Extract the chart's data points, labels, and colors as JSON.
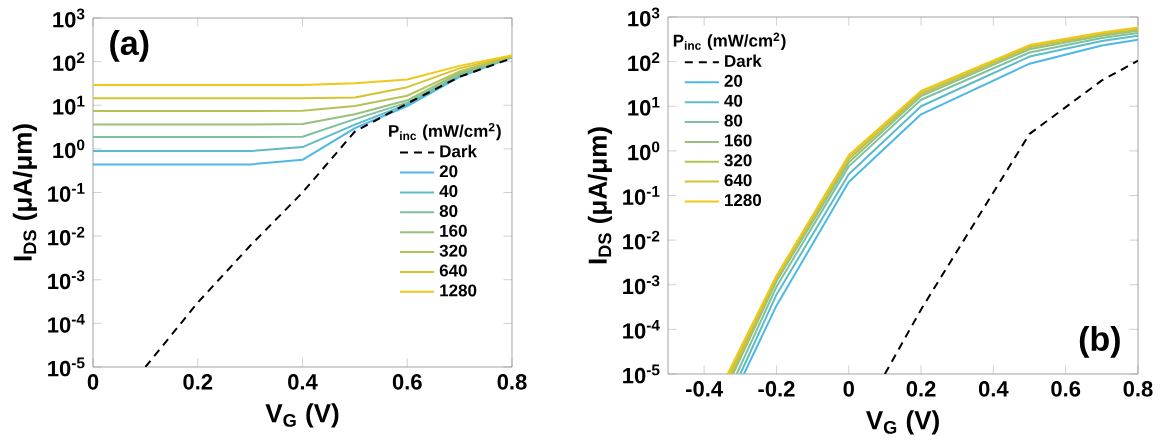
{
  "chart_data": [
    {
      "type": "line",
      "xlabel": "V$_{G}$ (V)",
      "ylabel": "I$_{DS}$ (μA/μm)",
      "legend_title": "P$_{inc}$ (mW/cm$^{2}$)",
      "annotations": [
        "(a)"
      ],
      "log": "y",
      "legend": "bottom right",
      "xlim": [
        0,
        0.8
      ],
      "xticks": [
        0,
        0.2,
        0.4,
        0.6,
        0.8
      ],
      "ylim": [
        1e-05,
        1000
      ],
      "yticks": [
        {
          "value": 1e-05,
          "label": "10$^{-5}$"
        },
        {
          "value": 0.0001,
          "label": "10$^{-4}$"
        },
        {
          "value": 0.001,
          "label": "10$^{-3}$"
        },
        {
          "value": 0.01,
          "label": "10$^{-2}$"
        },
        {
          "value": 0.1,
          "label": "10$^{-1}$"
        },
        {
          "value": 1,
          "label": "10$^{0}$"
        },
        {
          "value": 10,
          "label": "10$^{1}$"
        },
        {
          "value": 100,
          "label": "10$^{2}$"
        },
        {
          "value": 1000,
          "label": "10$^{3}$"
        }
      ],
      "series": [
        {
          "name": "Dark",
          "color": "#000000",
          "line_style": "dashed",
          "x": [
            0.1,
            0.2,
            0.3,
            0.4,
            0.5,
            0.6,
            0.7,
            0.8
          ],
          "values": [
            1e-05,
            0.0003,
            0.006,
            0.1,
            2.5,
            11,
            45,
            120
          ]
        },
        {
          "name": "20",
          "color": "#4db8e8",
          "x": [
            0,
            0.1,
            0.2,
            0.3,
            0.4,
            0.5,
            0.6,
            0.7,
            0.8
          ],
          "values": [
            0.44,
            0.44,
            0.44,
            0.44,
            0.56,
            3.0,
            9.6,
            45,
            125
          ]
        },
        {
          "name": "40",
          "color": "#5bbcc8",
          "x": [
            0,
            0.1,
            0.2,
            0.3,
            0.4,
            0.5,
            0.6,
            0.7,
            0.8
          ],
          "values": [
            0.89,
            0.89,
            0.89,
            0.89,
            1.1,
            3.6,
            10.5,
            48,
            127
          ]
        },
        {
          "name": "80",
          "color": "#7fc0a0",
          "x": [
            0,
            0.1,
            0.2,
            0.3,
            0.4,
            0.5,
            0.6,
            0.7,
            0.8
          ],
          "values": [
            1.86,
            1.86,
            1.86,
            1.86,
            1.9,
            4.8,
            11.5,
            50,
            128
          ]
        },
        {
          "name": "160",
          "color": "#99c07a",
          "x": [
            0,
            0.1,
            0.2,
            0.3,
            0.4,
            0.5,
            0.6,
            0.7,
            0.8
          ],
          "values": [
            3.6,
            3.6,
            3.6,
            3.6,
            3.7,
            6.2,
            13,
            55,
            130
          ]
        },
        {
          "name": "320",
          "color": "#b5c356",
          "x": [
            0,
            0.1,
            0.2,
            0.3,
            0.4,
            0.5,
            0.6,
            0.7,
            0.8
          ],
          "values": [
            7.4,
            7.4,
            7.4,
            7.4,
            7.5,
            9.6,
            16.5,
            60,
            132
          ]
        },
        {
          "name": "640",
          "color": "#d4c430",
          "x": [
            0,
            0.1,
            0.2,
            0.3,
            0.4,
            0.5,
            0.6,
            0.7,
            0.8
          ],
          "values": [
            14.5,
            14.5,
            14.5,
            14.5,
            14.5,
            15,
            26,
            70,
            135
          ]
        },
        {
          "name": "1280",
          "color": "#f0c81a",
          "x": [
            0,
            0.1,
            0.2,
            0.3,
            0.4,
            0.5,
            0.6,
            0.7,
            0.8
          ],
          "values": [
            29,
            29,
            29,
            29,
            29,
            32,
            39,
            80,
            140
          ]
        }
      ]
    },
    {
      "type": "line",
      "xlabel": "V$_{G}$ (V)",
      "ylabel": "I$_{DS}$ (μA/μm)",
      "legend_title": "P$_{inc}$ (mW/cm$^{2}$)",
      "annotations": [
        "(b)"
      ],
      "log": "y",
      "legend": "top left",
      "xlim": [
        -0.5,
        0.8
      ],
      "xticks": [
        -0.4,
        -0.2,
        0,
        0.2,
        0.4,
        0.6,
        0.8
      ],
      "ylim": [
        1e-05,
        1000
      ],
      "yticks": [
        {
          "value": 1e-05,
          "label": "10$^{-5}$"
        },
        {
          "value": 0.0001,
          "label": "10$^{-4}$"
        },
        {
          "value": 0.001,
          "label": "10$^{-3}$"
        },
        {
          "value": 0.01,
          "label": "10$^{-2}$"
        },
        {
          "value": 0.1,
          "label": "10$^{-1}$"
        },
        {
          "value": 1,
          "label": "10$^{0}$"
        },
        {
          "value": 10,
          "label": "10$^{1}$"
        },
        {
          "value": 100,
          "label": "10$^{2}$"
        },
        {
          "value": 1000,
          "label": "10$^{3}$"
        }
      ],
      "series": [
        {
          "name": "Dark",
          "color": "#000000",
          "line_style": "dashed",
          "x": [
            0.1,
            0.2,
            0.5,
            0.7,
            0.8
          ],
          "values": [
            1e-05,
            0.00028,
            2.4,
            38,
            105
          ]
        },
        {
          "name": "20",
          "color": "#4db8e8",
          "x": [
            -0.29,
            -0.2,
            0,
            0.2,
            0.5,
            0.7,
            0.8
          ],
          "values": [
            1e-05,
            0.00034,
            0.2,
            6.6,
            90,
            230,
            310
          ]
        },
        {
          "name": "40",
          "color": "#5bbcc8",
          "x": [
            -0.3,
            -0.2,
            0,
            0.2,
            0.5,
            0.7,
            0.8
          ],
          "values": [
            1e-05,
            0.0006,
            0.3,
            10,
            130,
            290,
            380
          ]
        },
        {
          "name": "80",
          "color": "#7fc0a0",
          "x": [
            -0.31,
            -0.2,
            0,
            0.2,
            0.5,
            0.7,
            0.8
          ],
          "values": [
            1e-05,
            0.0009,
            0.45,
            14,
            160,
            340,
            440
          ]
        },
        {
          "name": "160",
          "color": "#99c07a",
          "x": [
            -0.32,
            -0.2,
            0,
            0.2,
            0.5,
            0.7,
            0.8
          ],
          "values": [
            1e-05,
            0.0012,
            0.55,
            17,
            190,
            380,
            490
          ]
        },
        {
          "name": "320",
          "color": "#b5c356",
          "x": [
            -0.325,
            -0.2,
            0,
            0.2,
            0.5,
            0.7,
            0.8
          ],
          "values": [
            1e-05,
            0.0014,
            0.65,
            19,
            210,
            410,
            530
          ]
        },
        {
          "name": "640",
          "color": "#d4c430",
          "x": [
            -0.33,
            -0.2,
            0,
            0.2,
            0.5,
            0.7,
            0.8
          ],
          "values": [
            1e-05,
            0.0015,
            0.75,
            21,
            225,
            430,
            560
          ]
        },
        {
          "name": "1280",
          "color": "#f0c81a",
          "x": [
            -0.335,
            -0.2,
            0,
            0.2,
            0.5,
            0.7,
            0.8
          ],
          "values": [
            1e-05,
            0.0016,
            0.8,
            22,
            235,
            450,
            580
          ]
        }
      ]
    }
  ]
}
